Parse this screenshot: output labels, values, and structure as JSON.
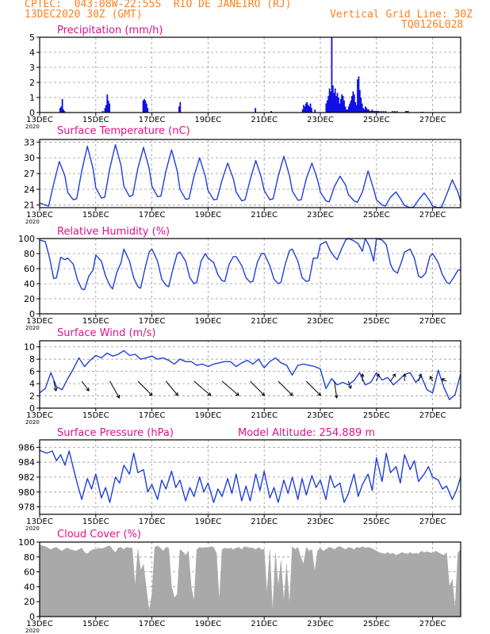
{
  "header": {
    "line1_left": "CPTEC:  043:08W-22:55S  RIO DE JANEIRO (RJ)",
    "line2_left": "13DEC2020 30Z (GMT)",
    "line2_right": "Vertical Grid Line: 30Z",
    "line3_right": "TQ0126L028"
  },
  "colors": {
    "header": "#ff7f1e",
    "title": "#e0128c",
    "line": "#1f3fdb",
    "bar": "#1010e6",
    "cloud": "#a9a9a9",
    "grid": "#9a9a9a"
  },
  "x_axis": {
    "tick_labels": [
      "13DEC",
      "15DEC",
      "17DEC",
      "19DEC",
      "21DEC",
      "23DEC",
      "25DEC",
      "27DEC"
    ],
    "tick_days": [
      0,
      2,
      4,
      6,
      8,
      10,
      12,
      14
    ],
    "year_label": "2020",
    "domain_days": [
      0,
      15
    ]
  },
  "chart_data": [
    {
      "id": "precip",
      "type": "bar",
      "title": "Precipitation (mm/h)",
      "ylim": [
        0,
        5
      ],
      "yticks": [
        0,
        1,
        2,
        3,
        4,
        5
      ],
      "x": [
        0.72,
        0.76,
        0.8,
        0.84,
        0.88,
        2.24,
        2.32,
        2.36,
        2.4,
        2.44,
        2.48,
        3.68,
        3.72,
        3.76,
        3.8,
        3.84,
        4.96,
        5.0,
        7.68,
        8.24,
        9.36,
        9.4,
        9.44,
        9.48,
        9.52,
        9.56,
        9.6,
        9.64,
        9.68,
        9.8,
        10.2,
        10.24,
        10.28,
        10.32,
        10.36,
        10.4,
        10.44,
        10.48,
        10.52,
        10.56,
        10.6,
        10.64,
        10.68,
        10.72,
        10.76,
        10.8,
        10.84,
        10.88,
        10.92,
        10.96,
        11.0,
        11.04,
        11.08,
        11.12,
        11.16,
        11.2,
        11.24,
        11.28,
        11.32,
        11.36,
        11.4,
        11.44,
        11.48,
        11.52,
        11.56,
        11.6,
        11.64,
        11.68,
        11.72,
        11.76,
        11.8,
        11.84,
        11.88,
        11.92,
        11.96,
        12.0,
        12.04,
        12.08,
        12.16,
        12.24,
        12.32,
        12.56,
        12.64,
        12.72,
        13.04,
        13.08,
        13.12,
        13.6,
        13.64
      ],
      "values": [
        0.3,
        0.4,
        0.9,
        0.2,
        0.1,
        0.1,
        0.3,
        0.5,
        1.2,
        0.8,
        0.6,
        0.8,
        0.9,
        0.8,
        0.6,
        0.3,
        0.4,
        0.7,
        0.3,
        0.1,
        0.2,
        0.5,
        0.4,
        0.6,
        0.7,
        0.5,
        0.4,
        0.6,
        0.3,
        0.2,
        0.6,
        0.8,
        1.1,
        1.6,
        1.4,
        5.0,
        1.8,
        1.3,
        1.6,
        1.1,
        1.3,
        1.0,
        0.6,
        0.9,
        1.2,
        1.1,
        0.8,
        0.4,
        0.2,
        0.2,
        0.4,
        0.6,
        0.8,
        1.1,
        1.4,
        1.2,
        0.7,
        0.5,
        2.2,
        2.4,
        1.5,
        1.0,
        0.6,
        0.3,
        0.2,
        0.4,
        0.3,
        0.2,
        0.2,
        0.1,
        0.1,
        0.2,
        0.1,
        0.1,
        0.1,
        0.1,
        0.1,
        0.1,
        0.1,
        0.1,
        0.1,
        0.1,
        0.1,
        0.1,
        0.1,
        0.1,
        0.1,
        0.05,
        0.05
      ]
    },
    {
      "id": "temp",
      "type": "line",
      "title": "Surface Temperature (nC)",
      "ylim": [
        20.5,
        33.5
      ],
      "yticks": [
        21,
        24,
        27,
        30,
        33
      ],
      "x": [
        0,
        0.2,
        0.32,
        0.5,
        0.7,
        0.9,
        1.0,
        1.2,
        1.32,
        1.5,
        1.7,
        1.9,
        2.0,
        2.2,
        2.32,
        2.5,
        2.7,
        2.9,
        3.0,
        3.2,
        3.32,
        3.5,
        3.7,
        3.9,
        4.0,
        4.2,
        4.32,
        4.5,
        4.7,
        4.9,
        5.0,
        5.2,
        5.32,
        5.5,
        5.7,
        5.9,
        6.0,
        6.2,
        6.32,
        6.5,
        6.7,
        6.9,
        7.0,
        7.2,
        7.32,
        7.5,
        7.7,
        7.9,
        8.0,
        8.2,
        8.32,
        8.5,
        8.7,
        8.9,
        9.0,
        9.2,
        9.32,
        9.5,
        9.7,
        9.9,
        10.0,
        10.2,
        10.32,
        10.5,
        10.7,
        10.9,
        11.0,
        11.2,
        11.32,
        11.5,
        11.7,
        11.9,
        12.0,
        12.2,
        12.32,
        12.5,
        12.7,
        12.9,
        13.0,
        13.2,
        13.32,
        13.5,
        13.7,
        13.9,
        14.0,
        14.2,
        14.32,
        14.5,
        14.7,
        14.9,
        15.0
      ],
      "values": [
        21.4,
        21.0,
        20.8,
        25.0,
        29.3,
        26.5,
        23.4,
        22.0,
        22.2,
        27.5,
        32.2,
        28.0,
        24.3,
        22.3,
        22.5,
        28.0,
        32.5,
        28.5,
        24.6,
        22.6,
        22.9,
        28.0,
        32.0,
        28.0,
        24.6,
        22.6,
        22.7,
        27.5,
        31.5,
        27.5,
        24.0,
        22.1,
        22.2,
        26.5,
        30.0,
        26.5,
        23.8,
        22.0,
        22.1,
        25.8,
        29.0,
        26.0,
        23.5,
        21.8,
        22.0,
        25.8,
        29.5,
        26.2,
        23.8,
        22.0,
        22.2,
        26.5,
        30.3,
        26.6,
        23.7,
        21.9,
        22.0,
        26.0,
        29.0,
        25.8,
        23.5,
        21.8,
        21.6,
        24.5,
        26.5,
        24.8,
        23.0,
        21.8,
        21.5,
        23.5,
        27.5,
        24.0,
        22.0,
        21.0,
        20.8,
        22.5,
        23.5,
        21.8,
        20.9,
        20.5,
        20.6,
        22.0,
        23.3,
        21.8,
        20.8,
        20.5,
        20.6,
        23.0,
        25.8,
        23.5,
        21.6
      ]
    },
    {
      "id": "rh",
      "type": "line",
      "title": "Relative Humidity (%)",
      "ylim": [
        0,
        100
      ],
      "yticks": [
        0,
        20,
        40,
        60,
        80,
        100
      ],
      "x": [
        0,
        0.2,
        0.35,
        0.5,
        0.6,
        0.75,
        0.9,
        1.0,
        1.2,
        1.35,
        1.5,
        1.6,
        1.75,
        1.9,
        2.0,
        2.2,
        2.35,
        2.5,
        2.6,
        2.75,
        2.9,
        3.0,
        3.2,
        3.35,
        3.5,
        3.6,
        3.75,
        3.9,
        4.0,
        4.2,
        4.35,
        4.5,
        4.6,
        4.75,
        4.9,
        5.0,
        5.2,
        5.35,
        5.5,
        5.6,
        5.75,
        5.9,
        6.0,
        6.2,
        6.35,
        6.5,
        6.6,
        6.75,
        6.9,
        7.0,
        7.2,
        7.35,
        7.5,
        7.6,
        7.75,
        7.9,
        8.0,
        8.2,
        8.35,
        8.5,
        8.6,
        8.75,
        8.9,
        9.0,
        9.2,
        9.35,
        9.5,
        9.6,
        9.75,
        9.9,
        10.0,
        10.2,
        10.35,
        10.5,
        10.6,
        10.75,
        10.9,
        11.0,
        11.2,
        11.35,
        11.5,
        11.6,
        11.75,
        11.9,
        12.0,
        12.2,
        12.35,
        12.5,
        12.6,
        12.75,
        12.9,
        13.0,
        13.2,
        13.35,
        13.5,
        13.6,
        13.75,
        13.9,
        14.0,
        14.2,
        14.35,
        14.5,
        14.6,
        14.75,
        14.9,
        15.0
      ],
      "values": [
        98.0,
        96.0,
        75.0,
        47.0,
        48.0,
        75.0,
        72.0,
        74.0,
        66.0,
        45.0,
        33.0,
        32.0,
        50.0,
        58.0,
        78.0,
        70.0,
        50.0,
        38.0,
        33.0,
        55.0,
        68.0,
        86.0,
        70.0,
        48.0,
        36.0,
        34.0,
        60.0,
        82.0,
        86.0,
        70.0,
        46.0,
        38.0,
        36.0,
        60.0,
        80.0,
        82.0,
        70.0,
        48.0,
        40.0,
        42.0,
        70.0,
        80.0,
        74.0,
        68.0,
        52.0,
        44.0,
        43.0,
        66.0,
        76.0,
        76.0,
        64.0,
        48.0,
        42.0,
        43.0,
        68.0,
        80.0,
        80.0,
        64.0,
        46.0,
        40.0,
        42.0,
        66.0,
        84.0,
        86.0,
        70.0,
        48.0,
        43.0,
        44.0,
        74.0,
        74.0,
        92.0,
        96.0,
        84.0,
        76.0,
        72.0,
        86.0,
        98.0,
        100.0,
        97.0,
        93.0,
        83.0,
        100.0,
        90.0,
        70.0,
        100.0,
        98.0,
        92.0,
        66.0,
        58.0,
        54.0,
        70.0,
        82.0,
        86.0,
        74.0,
        50.0,
        48.0,
        54.0,
        76.0,
        80.0,
        68.0,
        52.0,
        42.0,
        40.0,
        48.0,
        58.0,
        58.0
      ]
    },
    {
      "id": "wind",
      "type": "line",
      "title": "Surface Wind (m/s)",
      "ylim": [
        0,
        11
      ],
      "yticks": [
        0,
        2,
        4,
        6,
        8,
        10
      ],
      "x": [
        0,
        0.2,
        0.4,
        0.6,
        0.8,
        1.0,
        1.2,
        1.4,
        1.6,
        1.8,
        2.0,
        2.2,
        2.4,
        2.6,
        2.8,
        3.0,
        3.2,
        3.4,
        3.6,
        3.8,
        4.0,
        4.2,
        4.4,
        4.6,
        4.8,
        5.0,
        5.2,
        5.4,
        5.6,
        5.8,
        6.0,
        6.2,
        6.4,
        6.6,
        6.8,
        7.0,
        7.2,
        7.4,
        7.6,
        7.8,
        8.0,
        8.2,
        8.4,
        8.6,
        8.8,
        9.0,
        9.2,
        9.4,
        9.6,
        9.8,
        10.0,
        10.2,
        10.4,
        10.6,
        10.8,
        11.0,
        11.2,
        11.4,
        11.6,
        11.8,
        12.0,
        12.2,
        12.4,
        12.6,
        12.8,
        13.0,
        13.2,
        13.4,
        13.6,
        13.8,
        14.0,
        14.2,
        14.4,
        14.6,
        14.8,
        15.0
      ],
      "values": [
        2.5,
        3.2,
        5.8,
        3.5,
        3.0,
        4.8,
        6.4,
        8.2,
        6.8,
        7.8,
        8.6,
        8.2,
        9.0,
        8.5,
        8.8,
        9.4,
        8.6,
        8.8,
        8.0,
        8.2,
        8.5,
        8.0,
        8.2,
        7.8,
        7.2,
        8.0,
        7.6,
        7.6,
        7.0,
        7.2,
        6.8,
        7.2,
        7.4,
        7.6,
        7.6,
        6.8,
        7.4,
        7.8,
        7.2,
        8.0,
        6.6,
        7.6,
        8.2,
        7.4,
        7.0,
        5.4,
        7.0,
        7.2,
        7.0,
        6.8,
        6.4,
        3.2,
        4.8,
        3.8,
        4.2,
        3.8,
        4.5,
        5.8,
        3.8,
        4.2,
        5.8,
        4.6,
        5.0,
        3.8,
        4.6,
        5.5,
        5.8,
        4.2,
        5.2,
        3.0,
        2.5,
        6.2,
        3.4,
        1.4,
        2.2,
        5.6
      ],
      "vector_days": [
        0.5,
        1.5,
        2.5,
        3.5,
        4.5,
        5.5,
        6.5,
        7.5,
        8.5,
        9.5,
        10.5,
        11.0,
        11.5,
        12.0,
        12.5,
        13.0,
        13.5,
        14.0,
        14.5
      ],
      "vector_u": [
        0.5,
        1.5,
        2.0,
        3.0,
        2.5,
        3.5,
        3.5,
        3.0,
        3.0,
        3.0,
        0.5,
        0.5,
        0.0,
        0.5,
        1.0,
        0.0,
        0.5,
        -0.5,
        -1.0
      ],
      "vector_v": [
        -2.0,
        -2.0,
        -3.5,
        -3.0,
        -3.0,
        -3.0,
        -3.0,
        -3.0,
        -3.0,
        -3.0,
        -3.5,
        -1.5,
        1.5,
        1.5,
        1.5,
        1.5,
        1.5,
        1.0,
        0.5
      ]
    },
    {
      "id": "pres",
      "type": "line",
      "title": "Surface Pressure (hPa)",
      "subtitle": "Model Altitude: 254.889 m",
      "ylim": [
        977.0,
        987.0
      ],
      "yticks": [
        978,
        980,
        982,
        984,
        986
      ],
      "x": [
        0,
        0.25,
        0.45,
        0.6,
        0.75,
        0.9,
        1.05,
        1.2,
        1.35,
        1.5,
        1.7,
        1.85,
        2.0,
        2.2,
        2.35,
        2.5,
        2.7,
        2.85,
        3.0,
        3.2,
        3.35,
        3.5,
        3.7,
        3.85,
        4.0,
        4.2,
        4.35,
        4.5,
        4.7,
        4.85,
        5.0,
        5.2,
        5.35,
        5.5,
        5.7,
        5.85,
        6.0,
        6.2,
        6.35,
        6.5,
        6.7,
        6.85,
        7.0,
        7.2,
        7.35,
        7.5,
        7.7,
        7.85,
        8.0,
        8.2,
        8.35,
        8.5,
        8.7,
        8.85,
        9.0,
        9.2,
        9.35,
        9.5,
        9.7,
        9.85,
        10.0,
        10.2,
        10.35,
        10.5,
        10.7,
        10.85,
        11.0,
        11.2,
        11.35,
        11.5,
        11.7,
        11.85,
        12.0,
        12.2,
        12.35,
        12.5,
        12.7,
        12.85,
        13.0,
        13.2,
        13.35,
        13.5,
        13.7,
        13.85,
        14.0,
        14.2,
        14.35,
        14.5,
        14.7,
        14.85,
        15.0
      ],
      "values": [
        985.6,
        985.2,
        985.5,
        984.2,
        985.0,
        983.6,
        985.5,
        983.2,
        981.0,
        979.0,
        981.8,
        980.4,
        982.4,
        979.2,
        980.6,
        978.6,
        982.0,
        981.2,
        983.6,
        982.4,
        985.2,
        982.6,
        983.0,
        980.0,
        981.0,
        979.0,
        981.6,
        980.4,
        982.8,
        980.6,
        981.6,
        978.8,
        980.6,
        979.4,
        982.0,
        980.0,
        981.2,
        978.6,
        980.4,
        979.4,
        981.8,
        979.8,
        982.4,
        978.8,
        980.8,
        978.8,
        982.4,
        980.2,
        982.8,
        979.2,
        980.6,
        978.6,
        981.6,
        979.8,
        982.0,
        979.0,
        981.8,
        979.6,
        982.2,
        980.6,
        981.6,
        979.0,
        982.2,
        980.6,
        981.2,
        978.6,
        979.8,
        982.4,
        979.4,
        981.0,
        982.4,
        980.2,
        984.6,
        981.4,
        985.2,
        982.6,
        983.4,
        981.2,
        985.0,
        983.0,
        984.2,
        981.4,
        982.4,
        983.4,
        982.0,
        981.6,
        980.4,
        980.8,
        979.0,
        980.2,
        982.0
      ]
    },
    {
      "id": "cloud",
      "type": "area",
      "title": "Cloud Cover (%)",
      "ylim": [
        0,
        100
      ],
      "yticks": [
        0,
        20,
        40,
        60,
        80,
        100
      ],
      "x": [
        0,
        0.1,
        0.2,
        0.3,
        0.4,
        0.5,
        0.6,
        0.7,
        0.8,
        0.9,
        1.0,
        1.1,
        1.2,
        1.3,
        1.4,
        1.5,
        1.6,
        1.7,
        1.8,
        1.9,
        2.0,
        2.1,
        2.2,
        2.3,
        2.4,
        2.5,
        2.6,
        2.7,
        2.8,
        2.9,
        3.0,
        3.1,
        3.2,
        3.3,
        3.4,
        3.5,
        3.6,
        3.7,
        3.8,
        3.9,
        4.0,
        4.1,
        4.2,
        4.3,
        4.4,
        4.5,
        4.6,
        4.7,
        4.8,
        4.9,
        5.0,
        5.1,
        5.2,
        5.3,
        5.4,
        5.5,
        5.6,
        5.7,
        5.8,
        5.9,
        6.0,
        6.1,
        6.2,
        6.3,
        6.4,
        6.5,
        6.6,
        6.7,
        6.8,
        6.9,
        7.0,
        7.1,
        7.2,
        7.3,
        7.4,
        7.5,
        7.6,
        7.7,
        7.8,
        7.9,
        8.0,
        8.1,
        8.2,
        8.3,
        8.4,
        8.5,
        8.6,
        8.7,
        8.8,
        8.9,
        9.0,
        9.1,
        9.2,
        9.3,
        9.4,
        9.5,
        9.6,
        9.7,
        9.8,
        9.9,
        10.0,
        10.1,
        10.2,
        10.3,
        10.4,
        10.5,
        10.6,
        10.7,
        10.8,
        10.9,
        11.0,
        11.1,
        11.2,
        11.3,
        11.4,
        11.5,
        11.6,
        11.7,
        11.8,
        11.9,
        12.0,
        12.1,
        12.2,
        12.3,
        12.4,
        12.5,
        12.6,
        12.7,
        12.8,
        12.9,
        13.0,
        13.1,
        13.2,
        13.3,
        13.4,
        13.5,
        13.6,
        13.7,
        13.8,
        13.9,
        14.0,
        14.1,
        14.2,
        14.3,
        14.4,
        14.5,
        14.6,
        14.7,
        14.8,
        14.9,
        15.0
      ],
      "values": [
        96,
        95,
        94,
        92,
        90,
        92,
        93,
        90,
        88,
        91,
        92,
        90,
        89,
        88,
        90,
        92,
        86,
        84,
        88,
        90,
        90,
        92,
        91,
        92,
        94,
        95,
        90,
        86,
        92,
        93,
        90,
        93,
        92,
        92,
        40,
        90,
        62,
        70,
        38,
        8,
        30,
        93,
        95,
        92,
        88,
        93,
        92,
        40,
        25,
        30,
        90,
        87,
        82,
        88,
        40,
        20,
        90,
        93,
        92,
        93,
        92,
        94,
        93,
        85,
        20,
        90,
        92,
        91,
        92,
        90,
        92,
        93,
        90,
        94,
        93,
        92,
        92,
        90,
        93,
        90,
        90,
        30,
        90,
        5,
        85,
        40,
        75,
        20,
        70,
        15,
        94,
        90,
        93,
        80,
        70,
        93,
        88,
        90,
        60,
        88,
        92,
        88,
        90,
        93,
        92,
        90,
        93,
        94,
        92,
        90,
        93,
        92,
        90,
        93,
        92,
        94,
        92,
        93,
        92,
        90,
        88,
        86,
        85,
        84,
        86,
        84,
        85,
        82,
        84,
        86,
        85,
        84,
        86,
        84,
        85,
        84,
        88,
        86,
        87,
        86,
        85,
        88,
        86,
        84,
        82,
        86,
        40,
        50,
        10,
        86,
        90
      ]
    }
  ]
}
